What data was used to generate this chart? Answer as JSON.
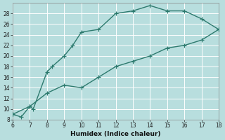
{
  "xlabel": "Humidex (Indice chaleur)",
  "xlim": [
    6,
    18
  ],
  "ylim": [
    8,
    30
  ],
  "xticks": [
    6,
    7,
    8,
    9,
    10,
    11,
    12,
    13,
    14,
    15,
    16,
    17,
    18
  ],
  "yticks": [
    8,
    10,
    12,
    14,
    16,
    18,
    20,
    22,
    24,
    26,
    28
  ],
  "line1_x": [
    6,
    6.5,
    7,
    7.2,
    8,
    8.3,
    9,
    9.5,
    10,
    11,
    12,
    13,
    14,
    15,
    16,
    17,
    18
  ],
  "line1_y": [
    9,
    8.5,
    10.5,
    10,
    17,
    18,
    20,
    22,
    24.5,
    25,
    28,
    28.5,
    29.5,
    28.5,
    28.5,
    27,
    25
  ],
  "line2_x": [
    6,
    7,
    8,
    9,
    10,
    11,
    12,
    13,
    14,
    15,
    16,
    17,
    18
  ],
  "line2_y": [
    9,
    10.5,
    13,
    14.5,
    14,
    16,
    18,
    19,
    20,
    21.5,
    22,
    23,
    25
  ],
  "line_color": "#2d7a6e",
  "bg_color": "#b8dede",
  "grid_color": "#ffffff",
  "marker": "+",
  "marker_size": 4,
  "line_width": 1.0
}
